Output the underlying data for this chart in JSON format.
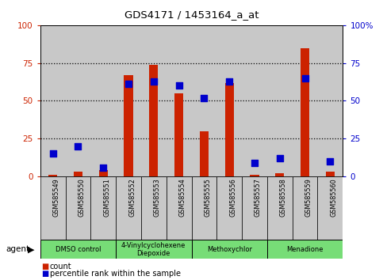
{
  "title": "GDS4171 / 1453164_a_at",
  "samples": [
    "GSM585549",
    "GSM585550",
    "GSM585551",
    "GSM585552",
    "GSM585553",
    "GSM585554",
    "GSM585555",
    "GSM585556",
    "GSM585557",
    "GSM585558",
    "GSM585559",
    "GSM585560"
  ],
  "count_values": [
    1,
    3,
    4,
    67,
    74,
    55,
    30,
    62,
    1,
    2,
    85,
    3
  ],
  "percentile_values": [
    15,
    20,
    6,
    61,
    63,
    60,
    52,
    63,
    9,
    12,
    65,
    10
  ],
  "agent_groups": [
    {
      "label": "DMSO control",
      "start": 0,
      "end": 3,
      "color": "#77DD77"
    },
    {
      "label": "4-Vinylcyclohexene\nDiepoxide",
      "start": 3,
      "end": 6,
      "color": "#77DD77"
    },
    {
      "label": "Methoxychlor",
      "start": 6,
      "end": 9,
      "color": "#77DD77"
    },
    {
      "label": "Menadione",
      "start": 9,
      "end": 12,
      "color": "#77DD77"
    }
  ],
  "bar_color": "#CC2200",
  "dot_color": "#0000CC",
  "ylim": [
    0,
    100
  ],
  "yticks": [
    0,
    25,
    50,
    75,
    100
  ],
  "grid_lines": [
    25,
    50,
    75
  ],
  "background_plot": "#FFFFFF",
  "background_sample": "#C8C8C8",
  "agent_label": "agent",
  "legend_count": "count",
  "legend_percentile": "percentile rank within the sample",
  "bar_width": 0.35,
  "dot_size": 28
}
